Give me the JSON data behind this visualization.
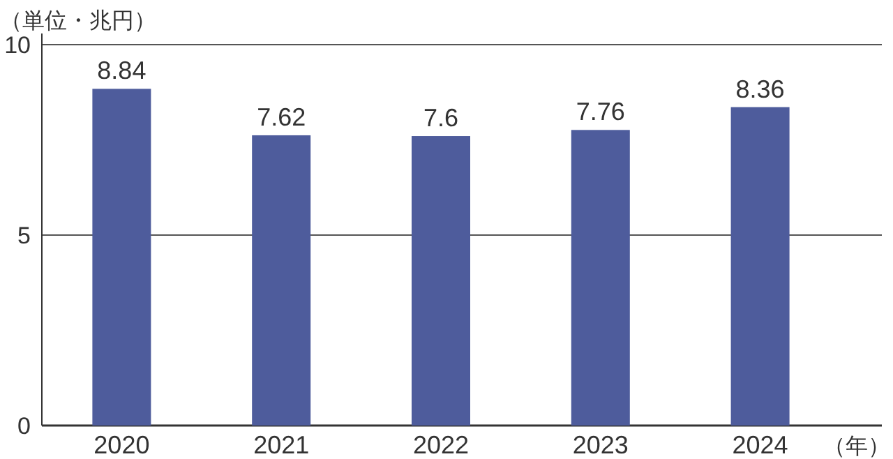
{
  "chart_data": {
    "type": "bar",
    "ylabel": "（単位・兆円）",
    "xlabel": "（年）",
    "categories": [
      "2020",
      "2021",
      "2022",
      "2023",
      "2024"
    ],
    "values": [
      8.84,
      7.62,
      7.6,
      7.76,
      8.36
    ],
    "color": "#4e5c9c",
    "ylim": [
      0,
      10
    ],
    "yticks": [
      0,
      5,
      10
    ],
    "grid": "y",
    "data_labels": true
  }
}
